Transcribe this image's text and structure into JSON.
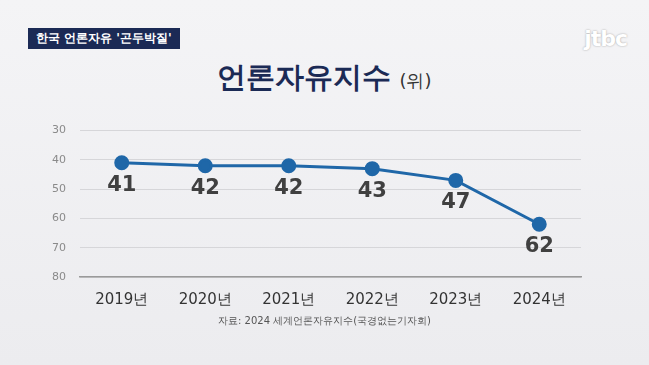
{
  "header": {
    "banner": "한국 언론자유 '곤두박질'",
    "logo": "jtbc"
  },
  "chart_data": {
    "type": "line",
    "title": "언론자유지수",
    "subtitle": "(위)",
    "categories": [
      "2019년",
      "2020년",
      "2021년",
      "2022년",
      "2023년",
      "2024년"
    ],
    "values": [
      41,
      42,
      42,
      43,
      47,
      62
    ],
    "color": "#1f67a8",
    "marker": "circle",
    "ylim": [
      80,
      30
    ],
    "yticks": [
      30,
      40,
      50,
      60,
      70,
      80
    ],
    "grid": true,
    "data_labels": true,
    "source": "자료: 2024 세계언론자유지수(국경없는기자회)"
  }
}
